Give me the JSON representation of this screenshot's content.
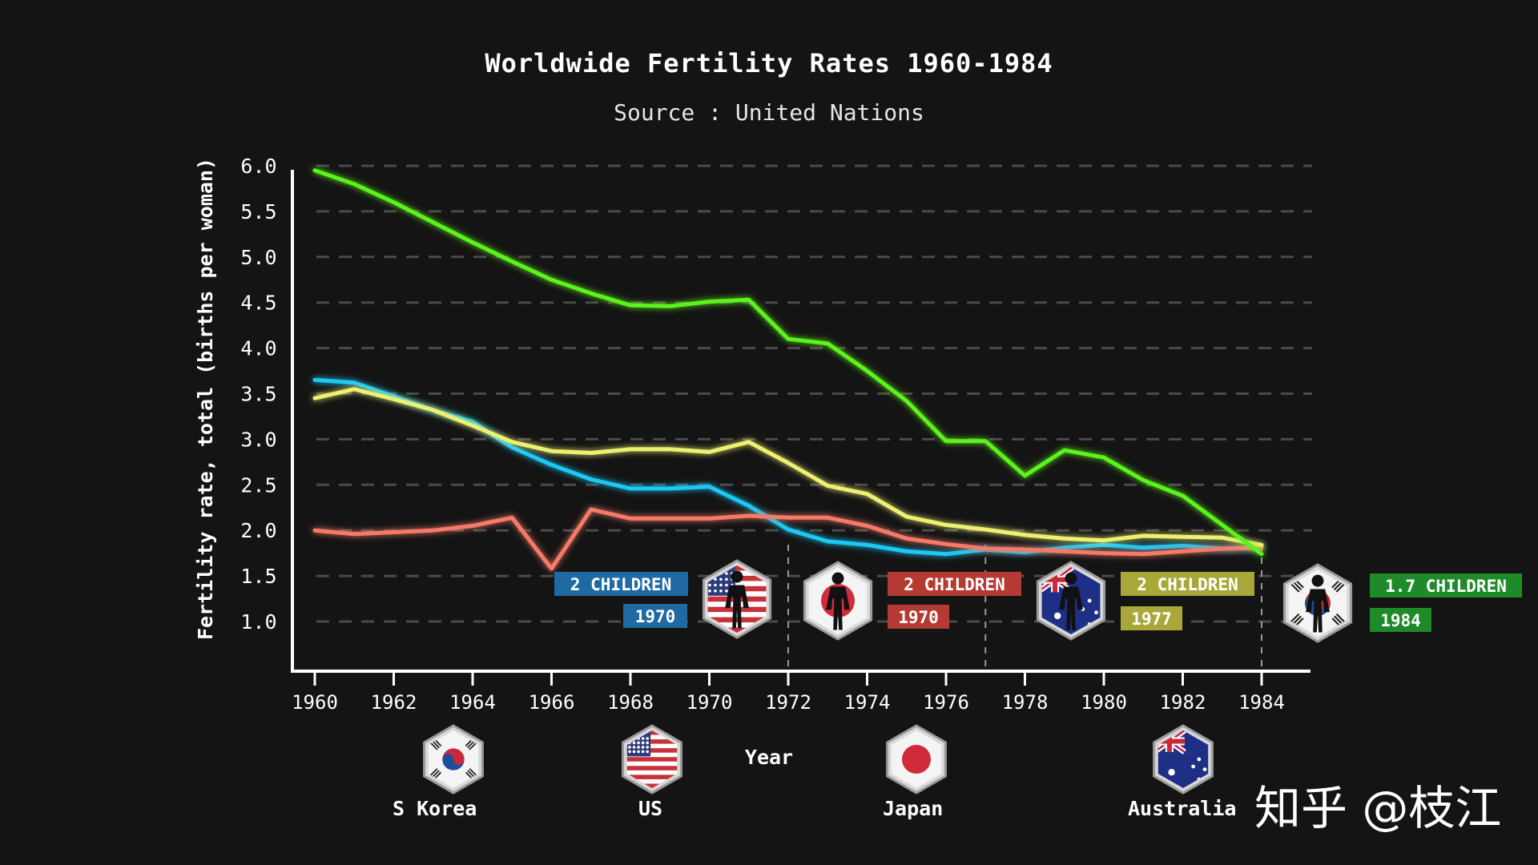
{
  "title": "Worldwide Fertility Rates 1960-1984",
  "subtitle": "Source : United Nations",
  "watermark": "知乎 @枝江",
  "colors": {
    "background": "#141414",
    "s_korea": "#5cf21e",
    "us": "#1ec8f5",
    "japan": "#f57a68",
    "australia": "#eef071",
    "badge_us": "#1f6aa3",
    "badge_japan": "#b53a34",
    "badge_australia": "#a8a83a",
    "badge_korea": "#1f8a2a"
  },
  "chart_data": {
    "type": "line",
    "xlabel": "Year",
    "ylabel": "Fertility rate, total (births per woman)",
    "xlim": [
      1960,
      1984
    ],
    "ylim": [
      0.5,
      6.0
    ],
    "x_ticks": [
      "1960",
      "1962",
      "1964",
      "1966",
      "1968",
      "1970",
      "1972",
      "1974",
      "1976",
      "1978",
      "1980",
      "1982",
      "1984"
    ],
    "y_ticks": [
      "1.0",
      "1.5",
      "2.0",
      "2.5",
      "3.0",
      "3.5",
      "4.0",
      "4.5",
      "5.0",
      "5.5",
      "6.0"
    ],
    "grid": "horizontal dashed",
    "legend_position": "bottom",
    "x": [
      1960,
      1961,
      1962,
      1963,
      1964,
      1965,
      1966,
      1967,
      1968,
      1969,
      1970,
      1971,
      1972,
      1973,
      1974,
      1975,
      1976,
      1977,
      1978,
      1979,
      1980,
      1981,
      1982,
      1983,
      1984
    ],
    "series": [
      {
        "name": "S Korea",
        "color": "#5cf21e",
        "values": [
          5.95,
          5.8,
          5.6,
          5.38,
          5.16,
          4.95,
          4.75,
          4.6,
          4.47,
          4.46,
          4.51,
          4.53,
          4.1,
          4.05,
          3.75,
          3.42,
          2.98,
          2.98,
          2.6,
          2.88,
          2.8,
          2.55,
          2.38,
          2.06,
          1.74
        ]
      },
      {
        "name": "US",
        "color": "#1ec8f5",
        "values": [
          3.65,
          3.62,
          3.47,
          3.32,
          3.19,
          2.91,
          2.72,
          2.56,
          2.46,
          2.46,
          2.48,
          2.27,
          2.01,
          1.88,
          1.84,
          1.77,
          1.74,
          1.79,
          1.76,
          1.81,
          1.84,
          1.81,
          1.83,
          1.8,
          1.81
        ]
      },
      {
        "name": "Japan",
        "color": "#f57a68",
        "values": [
          2.0,
          1.96,
          1.98,
          2.0,
          2.05,
          2.14,
          1.58,
          2.23,
          2.13,
          2.13,
          2.13,
          2.16,
          2.14,
          2.14,
          2.05,
          1.91,
          1.85,
          1.8,
          1.79,
          1.77,
          1.75,
          1.74,
          1.77,
          1.8,
          1.81
        ]
      },
      {
        "name": "Australia",
        "color": "#eef071",
        "values": [
          3.45,
          3.55,
          3.44,
          3.32,
          3.15,
          2.97,
          2.87,
          2.85,
          2.89,
          2.89,
          2.86,
          2.97,
          2.74,
          2.49,
          2.4,
          2.15,
          2.06,
          2.01,
          1.95,
          1.91,
          1.89,
          1.94,
          1.93,
          1.92,
          1.84
        ]
      }
    ],
    "annotations": [
      {
        "country": "US",
        "children": "2 CHILDREN",
        "year": "1970",
        "x": 1970
      },
      {
        "country": "Japan",
        "children": "2 CHILDREN",
        "year": "1970",
        "x": 1972
      },
      {
        "country": "Australia",
        "children": "2 CHILDREN",
        "year": "1977",
        "x": 1977
      },
      {
        "country": "S Korea",
        "children": "1.7 CHILDREN",
        "year": "1984",
        "x": 1984
      }
    ]
  }
}
